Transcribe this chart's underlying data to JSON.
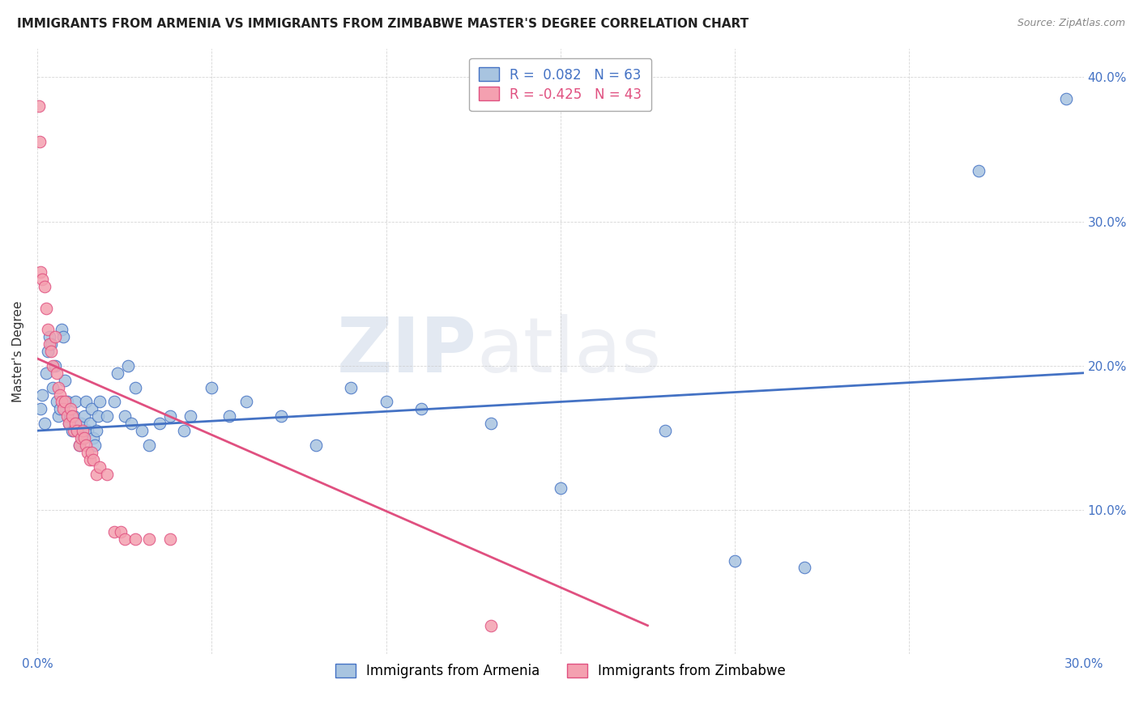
{
  "title": "IMMIGRANTS FROM ARMENIA VS IMMIGRANTS FROM ZIMBABWE MASTER'S DEGREE CORRELATION CHART",
  "source": "Source: ZipAtlas.com",
  "xlabel_blue": "Immigrants from Armenia",
  "xlabel_pink": "Immigrants from Zimbabwe",
  "ylabel": "Master's Degree",
  "xlim": [
    0.0,
    0.3
  ],
  "ylim": [
    0.0,
    0.42
  ],
  "xticks": [
    0.0,
    0.05,
    0.1,
    0.15,
    0.2,
    0.25,
    0.3
  ],
  "xticklabels": [
    "0.0%",
    "",
    "",
    "",
    "",
    "",
    "30.0%"
  ],
  "yticks": [
    0.0,
    0.1,
    0.2,
    0.3,
    0.4
  ],
  "yticklabels": [
    "",
    "10.0%",
    "20.0%",
    "30.0%",
    "40.0%"
  ],
  "legend_r_blue": "R =  0.082",
  "legend_n_blue": "N = 63",
  "legend_r_pink": "R = -0.425",
  "legend_n_pink": "N = 43",
  "blue_color": "#a8c4e0",
  "pink_color": "#f4a0b0",
  "line_blue": "#4472c4",
  "line_pink": "#e05080",
  "watermark_zip": "ZIP",
  "watermark_atlas": "atlas",
  "blue_points": [
    [
      0.001,
      0.17
    ],
    [
      0.0015,
      0.18
    ],
    [
      0.002,
      0.16
    ],
    [
      0.0025,
      0.195
    ],
    [
      0.003,
      0.21
    ],
    [
      0.0035,
      0.22
    ],
    [
      0.004,
      0.215
    ],
    [
      0.0045,
      0.185
    ],
    [
      0.005,
      0.2
    ],
    [
      0.0055,
      0.175
    ],
    [
      0.006,
      0.165
    ],
    [
      0.0065,
      0.17
    ],
    [
      0.007,
      0.225
    ],
    [
      0.0075,
      0.22
    ],
    [
      0.008,
      0.19
    ],
    [
      0.0085,
      0.175
    ],
    [
      0.009,
      0.16
    ],
    [
      0.0095,
      0.165
    ],
    [
      0.01,
      0.155
    ],
    [
      0.0105,
      0.165
    ],
    [
      0.011,
      0.175
    ],
    [
      0.0115,
      0.155
    ],
    [
      0.012,
      0.145
    ],
    [
      0.0125,
      0.16
    ],
    [
      0.013,
      0.15
    ],
    [
      0.0135,
      0.165
    ],
    [
      0.014,
      0.175
    ],
    [
      0.0145,
      0.155
    ],
    [
      0.015,
      0.16
    ],
    [
      0.0155,
      0.17
    ],
    [
      0.016,
      0.15
    ],
    [
      0.0165,
      0.145
    ],
    [
      0.017,
      0.155
    ],
    [
      0.0175,
      0.165
    ],
    [
      0.018,
      0.175
    ],
    [
      0.02,
      0.165
    ],
    [
      0.022,
      0.175
    ],
    [
      0.023,
      0.195
    ],
    [
      0.025,
      0.165
    ],
    [
      0.026,
      0.2
    ],
    [
      0.027,
      0.16
    ],
    [
      0.028,
      0.185
    ],
    [
      0.03,
      0.155
    ],
    [
      0.032,
      0.145
    ],
    [
      0.035,
      0.16
    ],
    [
      0.038,
      0.165
    ],
    [
      0.042,
      0.155
    ],
    [
      0.044,
      0.165
    ],
    [
      0.05,
      0.185
    ],
    [
      0.055,
      0.165
    ],
    [
      0.06,
      0.175
    ],
    [
      0.07,
      0.165
    ],
    [
      0.08,
      0.145
    ],
    [
      0.09,
      0.185
    ],
    [
      0.1,
      0.175
    ],
    [
      0.11,
      0.17
    ],
    [
      0.13,
      0.16
    ],
    [
      0.15,
      0.115
    ],
    [
      0.18,
      0.155
    ],
    [
      0.2,
      0.065
    ],
    [
      0.22,
      0.06
    ],
    [
      0.27,
      0.335
    ],
    [
      0.295,
      0.385
    ]
  ],
  "pink_points": [
    [
      0.0005,
      0.38
    ],
    [
      0.0008,
      0.355
    ],
    [
      0.001,
      0.265
    ],
    [
      0.0015,
      0.26
    ],
    [
      0.002,
      0.255
    ],
    [
      0.0025,
      0.24
    ],
    [
      0.003,
      0.225
    ],
    [
      0.0035,
      0.215
    ],
    [
      0.004,
      0.21
    ],
    [
      0.0045,
      0.2
    ],
    [
      0.005,
      0.22
    ],
    [
      0.0055,
      0.195
    ],
    [
      0.006,
      0.185
    ],
    [
      0.0065,
      0.18
    ],
    [
      0.007,
      0.175
    ],
    [
      0.0075,
      0.17
    ],
    [
      0.008,
      0.175
    ],
    [
      0.0085,
      0.165
    ],
    [
      0.009,
      0.16
    ],
    [
      0.0095,
      0.17
    ],
    [
      0.01,
      0.165
    ],
    [
      0.0105,
      0.155
    ],
    [
      0.011,
      0.16
    ],
    [
      0.0115,
      0.155
    ],
    [
      0.012,
      0.145
    ],
    [
      0.0125,
      0.15
    ],
    [
      0.013,
      0.155
    ],
    [
      0.0135,
      0.15
    ],
    [
      0.014,
      0.145
    ],
    [
      0.0145,
      0.14
    ],
    [
      0.015,
      0.135
    ],
    [
      0.0155,
      0.14
    ],
    [
      0.016,
      0.135
    ],
    [
      0.017,
      0.125
    ],
    [
      0.018,
      0.13
    ],
    [
      0.02,
      0.125
    ],
    [
      0.022,
      0.085
    ],
    [
      0.024,
      0.085
    ],
    [
      0.025,
      0.08
    ],
    [
      0.028,
      0.08
    ],
    [
      0.032,
      0.08
    ],
    [
      0.038,
      0.08
    ],
    [
      0.13,
      0.02
    ]
  ]
}
